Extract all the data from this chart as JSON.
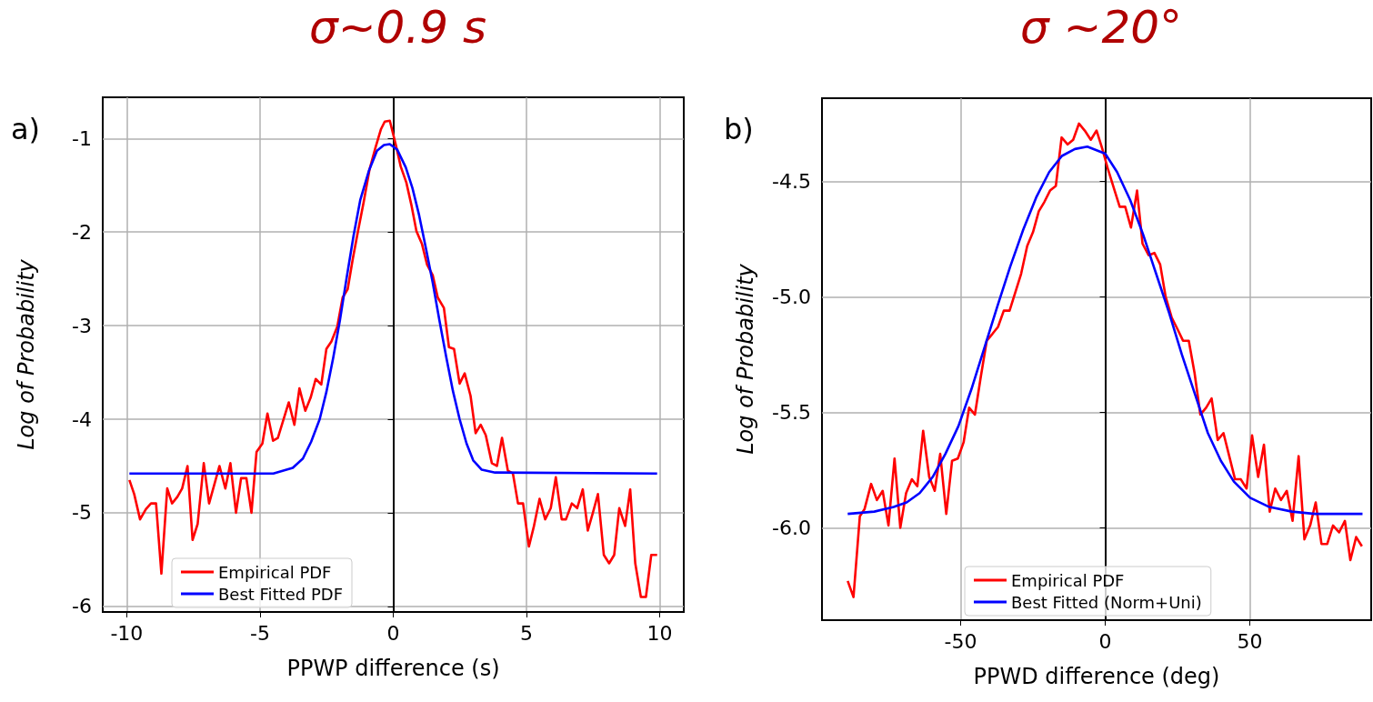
{
  "chart_data": [
    {
      "type": "line",
      "title": "σ~0.9 s",
      "xlabel": "PPWP difference (s)",
      "ylabel": "Log of Probability",
      "annotations": [
        "a)"
      ],
      "xlim": [
        -10.9,
        10.9
      ],
      "ylim": [
        -6.06,
        -0.56
      ],
      "xticks": [
        -10,
        -5,
        0,
        5,
        10
      ],
      "yticks": [
        -1,
        -2,
        -3,
        -4,
        -5,
        -6
      ],
      "grid": true,
      "legend": "bottom left",
      "marker": "none",
      "line_style": "solid",
      "series": [
        {
          "name": "Empirical PDF",
          "color": "#ff0000",
          "x": [
            -9.9,
            -9.72,
            -9.5,
            -9.28,
            -9.09,
            -8.9,
            -8.7,
            -8.48,
            -8.3,
            -8.1,
            -7.92,
            -7.72,
            -7.53,
            -7.34,
            -7.11,
            -6.91,
            -6.52,
            -6.3,
            -6.11,
            -5.9,
            -5.71,
            -5.51,
            -5.32,
            -5.13,
            -4.91,
            -4.72,
            -4.51,
            -4.33,
            -3.92,
            -3.71,
            -3.52,
            -3.3,
            -3.1,
            -2.91,
            -2.7,
            -2.51,
            -2.32,
            -2.1,
            -1.9,
            -1.71,
            -1.52,
            -1.33,
            -1.11,
            -0.89,
            -0.67,
            -0.46,
            -0.32,
            -0.13,
            0.09,
            0.28,
            0.49,
            0.68,
            0.87,
            1.08,
            1.27,
            1.48,
            1.67,
            1.9,
            2.09,
            2.28,
            2.49,
            2.68,
            2.9,
            3.09,
            3.28,
            3.47,
            3.7,
            3.89,
            4.08,
            4.3,
            4.49,
            4.68,
            4.87,
            5.09,
            5.28,
            5.49,
            5.7,
            5.91,
            6.1,
            6.32,
            6.48,
            6.7,
            6.9,
            7.11,
            7.3,
            7.49,
            7.68,
            7.9,
            8.1,
            8.29,
            8.48,
            8.7,
            8.89,
            9.08,
            9.29,
            9.48,
            9.68,
            9.9
          ],
          "values": [
            -4.65,
            -4.8,
            -5.07,
            -4.96,
            -4.9,
            -4.9,
            -5.65,
            -4.74,
            -4.9,
            -4.83,
            -4.74,
            -4.5,
            -5.29,
            -5.12,
            -4.47,
            -4.9,
            -4.5,
            -4.74,
            -4.47,
            -5.0,
            -4.63,
            -4.63,
            -5.0,
            -4.35,
            -4.26,
            -3.94,
            -4.23,
            -4.2,
            -3.82,
            -4.06,
            -3.67,
            -3.91,
            -3.77,
            -3.57,
            -3.63,
            -3.25,
            -3.17,
            -3.01,
            -2.7,
            -2.61,
            -2.29,
            -2.0,
            -1.68,
            -1.33,
            -1.1,
            -0.9,
            -0.82,
            -0.81,
            -1.06,
            -1.3,
            -1.47,
            -1.71,
            -1.99,
            -2.13,
            -2.35,
            -2.46,
            -2.7,
            -2.81,
            -3.23,
            -3.25,
            -3.62,
            -3.51,
            -3.75,
            -4.15,
            -4.06,
            -4.17,
            -4.47,
            -4.5,
            -4.2,
            -4.55,
            -4.58,
            -4.9,
            -4.9,
            -5.36,
            -5.14,
            -4.85,
            -5.07,
            -4.95,
            -4.62,
            -5.07,
            -5.07,
            -4.9,
            -4.95,
            -4.75,
            -5.19,
            -5.0,
            -4.8,
            -5.45,
            -5.54,
            -5.45,
            -4.95,
            -5.14,
            -4.75,
            -5.54,
            -5.9,
            -5.9,
            -5.45,
            -5.45
          ]
        },
        {
          "name": "Best Fitted PDF",
          "color": "#0000ff",
          "x": [
            -9.9,
            -4.5,
            -3.77,
            -3.39,
            -3.08,
            -2.76,
            -2.51,
            -2.25,
            -2.0,
            -1.75,
            -1.49,
            -1.24,
            -0.92,
            -0.61,
            -0.35,
            -0.13,
            0.15,
            0.47,
            0.72,
            0.97,
            1.23,
            1.48,
            1.73,
            1.99,
            2.24,
            2.49,
            2.75,
            3.0,
            3.32,
            3.82,
            9.9
          ],
          "values": [
            -4.58,
            -4.58,
            -4.52,
            -4.42,
            -4.24,
            -4.0,
            -3.71,
            -3.34,
            -2.94,
            -2.49,
            -2.04,
            -1.66,
            -1.35,
            -1.13,
            -1.07,
            -1.06,
            -1.12,
            -1.31,
            -1.53,
            -1.82,
            -2.18,
            -2.54,
            -2.94,
            -3.34,
            -3.7,
            -4.0,
            -4.26,
            -4.44,
            -4.54,
            -4.57,
            -4.58
          ]
        }
      ]
    },
    {
      "type": "line",
      "title": "σ ~20°",
      "xlabel": "PPWD difference (deg)",
      "ylabel": "Log of Probability",
      "annotations": [
        "b)"
      ],
      "xlim": [
        -98,
        92
      ],
      "ylim": [
        -6.4,
        -4.14
      ],
      "xticks": [
        -50,
        0,
        50
      ],
      "yticks": [
        {
          "value": -4.5,
          "label": "-4.5"
        },
        {
          "value": -5,
          "label": "-5.0"
        },
        {
          "value": -5.5,
          "label": "-5.5"
        },
        {
          "value": -6,
          "label": "-6.0"
        }
      ],
      "grid": true,
      "legend": "bottom",
      "marker": "none",
      "line_style": "solid",
      "series": [
        {
          "name": "Empirical PDF",
          "color": "#ff0000",
          "x": [
            -89.1,
            -87.1,
            -84.9,
            -83.3,
            -81.0,
            -79.0,
            -77.0,
            -75.0,
            -72.9,
            -70.9,
            -68.9,
            -66.9,
            -65.0,
            -63.0,
            -60.9,
            -59.0,
            -57.1,
            -55.0,
            -53.0,
            -51.0,
            -49.0,
            -47.1,
            -45.1,
            -43.1,
            -41.0,
            -39.0,
            -37.1,
            -35.1,
            -33.1,
            -31.1,
            -29.1,
            -27.0,
            -25.0,
            -23.0,
            -21.1,
            -19.1,
            -17.1,
            -15.1,
            -13.0,
            -11.1,
            -9.1,
            -7.1,
            -5.0,
            -3.0,
            -1.0,
            1.0,
            3.0,
            5.0,
            6.9,
            8.9,
            11.0,
            12.9,
            15.0,
            17.0,
            19.0,
            20.9,
            23.0,
            25.0,
            26.9,
            28.9,
            30.9,
            32.9,
            34.9,
            36.8,
            38.9,
            40.9,
            42.9,
            44.9,
            46.9,
            48.9,
            50.8,
            52.9,
            54.9,
            56.9,
            58.8,
            60.8,
            62.8,
            64.8,
            66.9,
            68.9,
            70.9,
            72.8,
            74.8,
            76.8,
            78.8,
            80.9,
            82.9,
            84.8,
            86.8,
            88.8
          ],
          "values": [
            -6.23,
            -6.3,
            -5.95,
            -5.92,
            -5.81,
            -5.88,
            -5.84,
            -5.99,
            -5.7,
            -6.0,
            -5.85,
            -5.79,
            -5.82,
            -5.58,
            -5.78,
            -5.84,
            -5.68,
            -5.94,
            -5.71,
            -5.7,
            -5.63,
            -5.48,
            -5.51,
            -5.35,
            -5.19,
            -5.16,
            -5.13,
            -5.06,
            -5.06,
            -4.98,
            -4.9,
            -4.78,
            -4.72,
            -4.63,
            -4.59,
            -4.54,
            -4.52,
            -4.31,
            -4.34,
            -4.32,
            -4.25,
            -4.28,
            -4.32,
            -4.28,
            -4.36,
            -4.45,
            -4.53,
            -4.61,
            -4.61,
            -4.7,
            -4.54,
            -4.77,
            -4.82,
            -4.81,
            -4.86,
            -5.0,
            -5.09,
            -5.14,
            -5.19,
            -5.19,
            -5.33,
            -5.51,
            -5.48,
            -5.44,
            -5.62,
            -5.59,
            -5.69,
            -5.79,
            -5.79,
            -5.83,
            -5.6,
            -5.78,
            -5.64,
            -5.93,
            -5.83,
            -5.88,
            -5.84,
            -5.97,
            -5.69,
            -6.05,
            -5.99,
            -5.89,
            -6.07,
            -6.07,
            -5.99,
            -6.02,
            -5.97,
            -6.14,
            -6.04,
            -6.08
          ]
        },
        {
          "name": "Best Fitted (Norm+Uni)",
          "color": "#0000ff",
          "x": [
            -89.1,
            -79.9,
            -73.2,
            -68.7,
            -64.2,
            -59.7,
            -55.3,
            -50.8,
            -46.3,
            -41.8,
            -37.3,
            -32.9,
            -28.4,
            -23.9,
            -19.4,
            -15.0,
            -10.5,
            -6.2,
            0,
            4.1,
            8.6,
            13.1,
            17.6,
            22.1,
            26.5,
            31.0,
            35.5,
            40.0,
            44.5,
            50.1,
            56.8,
            64.6,
            72.5,
            89.0
          ],
          "values": [
            -5.94,
            -5.93,
            -5.91,
            -5.89,
            -5.85,
            -5.78,
            -5.68,
            -5.56,
            -5.4,
            -5.22,
            -5.04,
            -4.87,
            -4.71,
            -4.57,
            -4.46,
            -4.39,
            -4.36,
            -4.35,
            -4.38,
            -4.46,
            -4.58,
            -4.73,
            -4.9,
            -5.07,
            -5.25,
            -5.42,
            -5.59,
            -5.71,
            -5.8,
            -5.87,
            -5.91,
            -5.93,
            -5.94,
            -5.94
          ]
        }
      ]
    }
  ]
}
